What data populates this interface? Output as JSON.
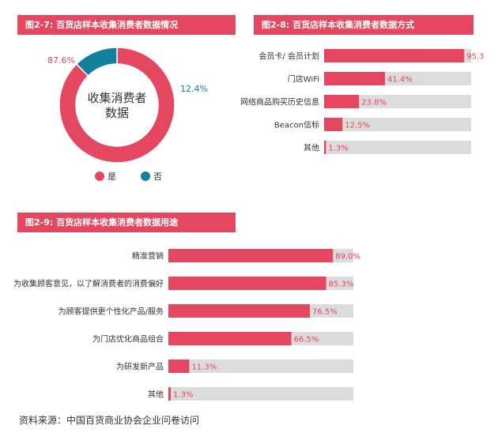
{
  "headers": {
    "fig7": "图2-7: 百货店样本收集消费者数据情况",
    "fig8": "图2-8: 百货店样本收集消费者数据方式",
    "fig9": "图2-9: 百货店样本收集消费者数据用途"
  },
  "source": "资料来源：中国百货商业协会企业问卷访问",
  "colors": {
    "primary": "#e4475f",
    "secondary": "#13809b",
    "track": "#dcdcdc"
  },
  "chart_data": [
    {
      "type": "pie",
      "title": "图2-7: 百货店样本收集消费者数据情况",
      "center_label": [
        "收集消费者",
        "数据"
      ],
      "slices": [
        {
          "name": "是",
          "value": 87.6,
          "label": "87.6%"
        },
        {
          "name": "否",
          "value": 12.4,
          "label": "12.4%"
        }
      ],
      "legend": "bottom"
    },
    {
      "type": "bar",
      "title": "图2-8: 百货店样本收集消费者数据方式",
      "orientation": "horizontal",
      "xlim": [
        0,
        100
      ],
      "categories": [
        "会员卡/ 会员计划",
        "门店WiFi",
        "网络商品购买历史信息",
        "Beacon信标",
        "其他"
      ],
      "values": [
        95.3,
        41.4,
        23.8,
        12.5,
        1.3
      ],
      "labels": [
        "95.3",
        "41.4%",
        "23.8%",
        "12.5%",
        "1.3%"
      ]
    },
    {
      "type": "bar",
      "title": "图2-9: 百货店样本收集消费者数据用途",
      "orientation": "horizontal",
      "xlim": [
        0,
        100
      ],
      "categories": [
        "精准营销",
        "为收集顾客意见，以了解消费者的消费偏好",
        "为顾客提供更个性化产品/服务",
        "为门店优化商品组合",
        "为研发新产品",
        "其他"
      ],
      "values": [
        89.0,
        85.3,
        76.5,
        66.5,
        11.3,
        1.3
      ],
      "labels": [
        "89.0%",
        "85.3%",
        "76.5%",
        "66.5%",
        "11.3%",
        "1.3%"
      ]
    }
  ]
}
